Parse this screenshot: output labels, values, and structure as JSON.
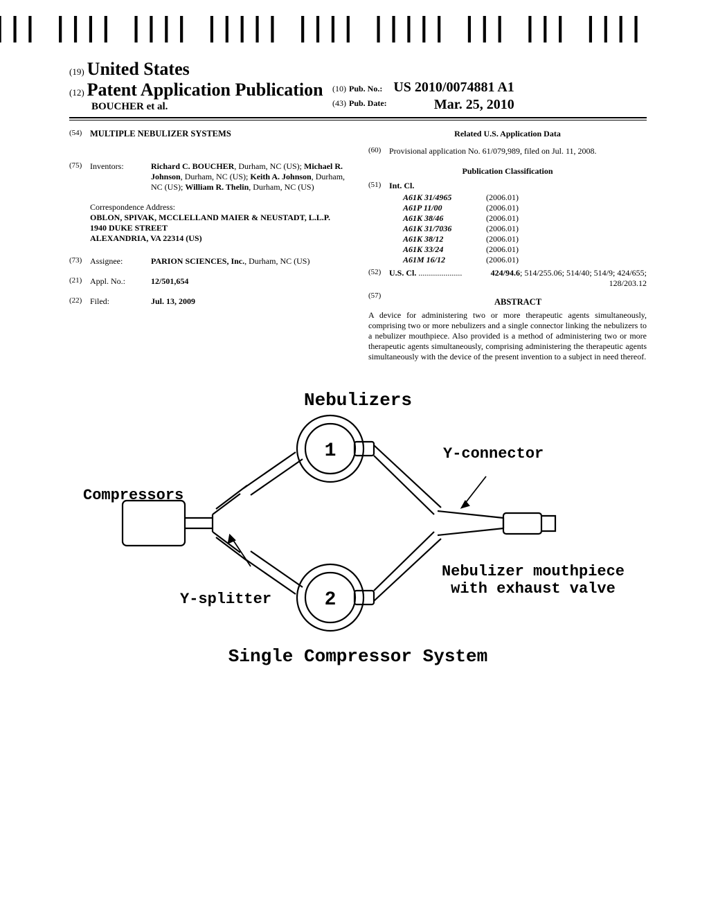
{
  "barcode_text": "US 20100074881A1",
  "header": {
    "code19": "(19)",
    "country": "United States",
    "code12": "(12)",
    "pub_type": "Patent Application Publication",
    "authors": "BOUCHER et al.",
    "code10": "(10)",
    "pubno_label": "Pub. No.:",
    "pubno": "US 2010/0074881 A1",
    "code43": "(43)",
    "pubdate_label": "Pub. Date:",
    "pubdate": "Mar. 25, 2010"
  },
  "title": {
    "code": "(54)",
    "text": "MULTIPLE NEBULIZER SYSTEMS"
  },
  "inventors": {
    "code": "(75)",
    "label": "Inventors:",
    "html": "<b>Richard C. BOUCHER</b>, Durham, NC (US); <b>Michael R. Johnson</b>, Durham, NC (US); <b>Keith A. Johnson</b>, Durham, NC (US); <b>William R. Thelin</b>, Durham, NC (US)"
  },
  "correspondence": {
    "label": "Correspondence Address:",
    "lines": [
      "OBLON, SPIVAK, MCCLELLAND MAIER & NEUSTADT, L.L.P.",
      "1940 DUKE STREET",
      "ALEXANDRIA, VA 22314 (US)"
    ]
  },
  "assignee": {
    "code": "(73)",
    "label": "Assignee:",
    "name": "PARION SCIENCES, Inc.",
    "loc": "Durham, NC (US)"
  },
  "applno": {
    "code": "(21)",
    "label": "Appl. No.:",
    "val": "12/501,654"
  },
  "filed": {
    "code": "(22)",
    "label": "Filed:",
    "val": "Jul. 13, 2009"
  },
  "related": {
    "heading": "Related U.S. Application Data",
    "code": "(60)",
    "text": "Provisional application No. 61/079,989, filed on Jul. 11, 2008."
  },
  "pubclass": {
    "heading": "Publication Classification",
    "code51": "(51)",
    "intcl_label": "Int. Cl.",
    "intcl": [
      {
        "code": "A61K 31/4965",
        "ver": "(2006.01)"
      },
      {
        "code": "A61P 11/00",
        "ver": "(2006.01)"
      },
      {
        "code": "A61K 38/46",
        "ver": "(2006.01)"
      },
      {
        "code": "A61K 31/7036",
        "ver": "(2006.01)"
      },
      {
        "code": "A61K 38/12",
        "ver": "(2006.01)"
      },
      {
        "code": "A61K 33/24",
        "ver": "(2006.01)"
      },
      {
        "code": "A61M 16/12",
        "ver": "(2006.01)"
      }
    ],
    "code52": "(52)",
    "uscl_label": "U.S. Cl.",
    "uscl_val": "424/94.6; 514/255.06; 514/40; 514/9; 424/655; 128/203.12"
  },
  "abstract": {
    "code": "(57)",
    "heading": "ABSTRACT",
    "text": "A device for administering two or more therapeutic agents simultaneously, comprising two or more nebulizers and a single connector linking the nebulizers to a nebulizer mouthpiece. Also provided is a method of administering two or more therapeutic agents simultaneously, comprising administering the therapeutic agents simultaneously with the device of the present invention to a subject in need thereof."
  },
  "figure": {
    "title": "Nebulizers",
    "labels": {
      "compressors": "Compressors",
      "ysplitter": "Y-splitter",
      "yconnector": "Y-connector",
      "mouthpiece1": "Nebulizer mouthpiece",
      "mouthpiece2": "with exhaust valve",
      "neb1": "1",
      "neb2": "2"
    },
    "caption": "Single Compressor System",
    "style": {
      "stroke": "#000000",
      "stroke_width": 2,
      "font": "Courier New",
      "bg": "#ffffff"
    }
  }
}
